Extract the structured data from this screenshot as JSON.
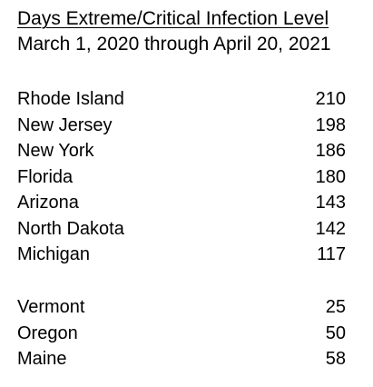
{
  "header": {
    "title": "Days Extreme/Critical Infection Level",
    "subtitle": "March 1, 2020 through April 20, 2021"
  },
  "group_top": [
    {
      "state": "Rhode Island",
      "days": "210"
    },
    {
      "state": "New Jersey",
      "days": "198"
    },
    {
      "state": "New York",
      "days": "186"
    },
    {
      "state": "Florida",
      "days": "180"
    },
    {
      "state": "Arizona",
      "days": "143"
    },
    {
      "state": "North Dakota",
      "days": "142"
    },
    {
      "state": "Michigan",
      "days": "117"
    }
  ],
  "group_bottom": [
    {
      "state": "Vermont",
      "days": "25"
    },
    {
      "state": "Oregon",
      "days": "50"
    },
    {
      "state": "Maine",
      "days": "58"
    }
  ]
}
